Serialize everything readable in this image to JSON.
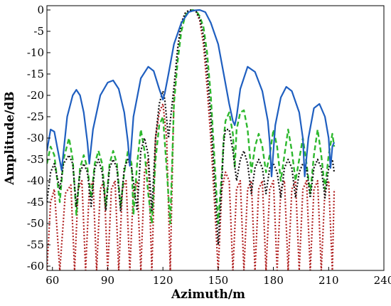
{
  "chart_data": {
    "type": "line",
    "xlabel": "Azimuth/m",
    "ylabel": "Amplitude/dB",
    "xlim": [
      57,
      240
    ],
    "ylim": [
      -61,
      1
    ],
    "xticks": [
      60,
      90,
      120,
      150,
      180,
      210,
      240
    ],
    "yticks": [
      0,
      -5,
      -10,
      -15,
      -20,
      -25,
      -30,
      -35,
      -40,
      -45,
      -50,
      -55,
      -60
    ],
    "grid": false,
    "series": [
      {
        "color": "#1f5fc0",
        "style": "solid",
        "x": [
          57,
          59,
          61,
          63,
          65,
          68,
          71,
          73,
          75,
          77,
          79,
          80,
          82,
          86,
          90,
          93,
          96,
          99,
          101,
          102,
          104,
          108,
          112,
          115,
          118,
          120,
          121,
          123,
          126,
          130,
          134,
          137,
          140,
          143,
          146,
          150,
          153,
          156,
          158,
          159,
          160,
          162,
          166,
          170,
          174,
          177,
          178,
          179,
          181,
          184,
          187,
          190,
          194,
          196,
          197,
          199,
          202,
          205,
          208,
          210,
          211,
          212,
          213
        ],
        "y": [
          -33,
          -28,
          -28.5,
          -33,
          -37.5,
          -25,
          -20,
          -18.7,
          -20,
          -24,
          -31,
          -36,
          -28,
          -20,
          -17,
          -16.5,
          -18.5,
          -24,
          -31,
          -36.5,
          -25,
          -16,
          -13.3,
          -14.3,
          -18.5,
          -21,
          -19.5,
          -15,
          -8,
          -3,
          -0.5,
          -0.1,
          0,
          -0.5,
          -3,
          -8,
          -15,
          -22,
          -26,
          -27,
          -25,
          -18.5,
          -13.3,
          -14.5,
          -19,
          -26,
          -31,
          -39,
          -27,
          -20.5,
          -18,
          -19,
          -24,
          -30,
          -39,
          -30,
          -23,
          -22,
          -25,
          -30,
          -37,
          -32,
          -31
        ]
      },
      {
        "color": "#2db82d",
        "style": "dashed",
        "x": [
          57,
          59,
          61,
          64,
          66,
          69,
          71,
          73,
          75,
          77,
          79,
          81,
          83,
          85,
          87,
          89,
          91,
          93,
          95,
          97,
          99,
          101,
          103,
          104,
          106,
          108,
          110,
          112,
          114,
          116,
          118,
          120,
          122,
          124,
          126,
          128,
          130,
          132,
          134,
          136,
          138,
          140,
          142,
          144,
          146,
          148,
          150,
          152,
          153,
          154,
          156,
          158,
          159,
          160,
          162,
          164,
          166,
          168,
          170,
          172,
          174,
          176,
          178,
          180,
          182,
          184,
          186,
          188,
          190,
          192,
          194,
          196,
          198,
          200,
          202,
          204,
          206,
          208,
          210,
          212,
          213
        ],
        "y": [
          -36,
          -32,
          -34,
          -45,
          -35,
          -30,
          -35,
          -48,
          -37,
          -34,
          -37,
          -44,
          -36,
          -33,
          -36,
          -46,
          -36,
          -33,
          -36,
          -46,
          -38,
          -33,
          -36,
          -48,
          -36,
          -28,
          -33,
          -43,
          -50,
          -35,
          -27,
          -25,
          -37,
          -50,
          -22,
          -12,
          -5,
          -1.5,
          -0.3,
          0,
          -0.2,
          -1.5,
          -4,
          -10,
          -20,
          -35,
          -50,
          -38,
          -30,
          -26,
          -24,
          -29,
          -37,
          -28,
          -24,
          -23.5,
          -28,
          -38,
          -32,
          -29,
          -32,
          -38,
          -34,
          -28,
          -32,
          -40,
          -34,
          -28,
          -33,
          -40,
          -35,
          -30,
          -36,
          -43,
          -34,
          -28,
          -34,
          -42,
          -34,
          -29,
          -32
        ]
      },
      {
        "color": "#111111",
        "style": "dotted",
        "x": [
          57,
          59,
          61,
          64,
          66,
          69,
          71,
          73,
          75,
          77,
          79,
          81,
          83,
          85,
          87,
          89,
          91,
          93,
          95,
          97,
          99,
          101,
          103,
          106,
          108,
          110,
          112,
          114,
          116,
          118,
          120,
          121,
          123,
          126,
          128,
          130,
          132,
          134,
          136,
          138,
          140,
          142,
          144,
          146,
          148,
          150,
          152,
          153,
          154,
          156,
          158,
          160,
          162,
          164,
          166,
          168,
          170,
          172,
          174,
          176,
          178,
          180,
          182,
          184,
          186,
          188,
          190,
          192,
          194,
          196,
          198,
          200,
          202,
          204,
          206,
          208,
          210,
          212,
          213
        ],
        "y": [
          -45,
          -38,
          -36,
          -42,
          -36,
          -34,
          -36,
          -46,
          -38,
          -36,
          -38,
          -46,
          -37,
          -35,
          -38,
          -47,
          -37,
          -35,
          -37,
          -47,
          -37,
          -35,
          -37,
          -47,
          -33,
          -30,
          -34,
          -47,
          -30,
          -22,
          -19,
          -21,
          -30,
          -18,
          -9,
          -3,
          -0.8,
          -0.1,
          0,
          -0.3,
          -2,
          -6,
          -14,
          -25,
          -40,
          -55,
          -40,
          -31,
          -28,
          -28,
          -33,
          -40,
          -35,
          -33,
          -36,
          -43,
          -37,
          -35,
          -37,
          -43,
          -37,
          -36,
          -38,
          -44,
          -37,
          -35,
          -37,
          -44,
          -38,
          -36,
          -37,
          -44,
          -37,
          -35,
          -37,
          -44,
          -37,
          -35,
          -38
        ]
      },
      {
        "color": "#b02020",
        "style": "dotted",
        "x": [
          57,
          59,
          61,
          64,
          67,
          70,
          72,
          74,
          76,
          78,
          80,
          82,
          84,
          86,
          88,
          90,
          92,
          94,
          96,
          98,
          100,
          102,
          104,
          106,
          108,
          110,
          112,
          114,
          116,
          118,
          120,
          122,
          124,
          126,
          128,
          130,
          132,
          134,
          136,
          138,
          140,
          142,
          144,
          146,
          148,
          150,
          152,
          154,
          156,
          158,
          160,
          162,
          164,
          166,
          168,
          170,
          172,
          174,
          176,
          178,
          180,
          182,
          184,
          186,
          188,
          190,
          192,
          194,
          196,
          198,
          200,
          202,
          204,
          206,
          208,
          210,
          212,
          213
        ],
        "y": [
          -61,
          -45,
          -42,
          -61,
          -43,
          -41,
          -61,
          -42,
          -40,
          -61,
          -42,
          -40,
          -61,
          -42,
          -40,
          -61,
          -42,
          -40,
          -61,
          -42,
          -40,
          -61,
          -42,
          -40,
          -61,
          -38,
          -35,
          -61,
          -30,
          -24,
          -22,
          -30,
          -61,
          -20,
          -9,
          -3,
          -0.8,
          -0.1,
          0,
          -0.4,
          -2.5,
          -8,
          -18,
          -30,
          -45,
          -61,
          -42,
          -38,
          -40,
          -61,
          -42,
          -40,
          -61,
          -42,
          -40,
          -61,
          -42,
          -40,
          -61,
          -42,
          -40,
          -61,
          -42,
          -40,
          -61,
          -42,
          -40,
          -61,
          -42,
          -40,
          -61,
          -42,
          -40,
          -61,
          -42,
          -40,
          -61,
          -42
        ]
      }
    ]
  }
}
